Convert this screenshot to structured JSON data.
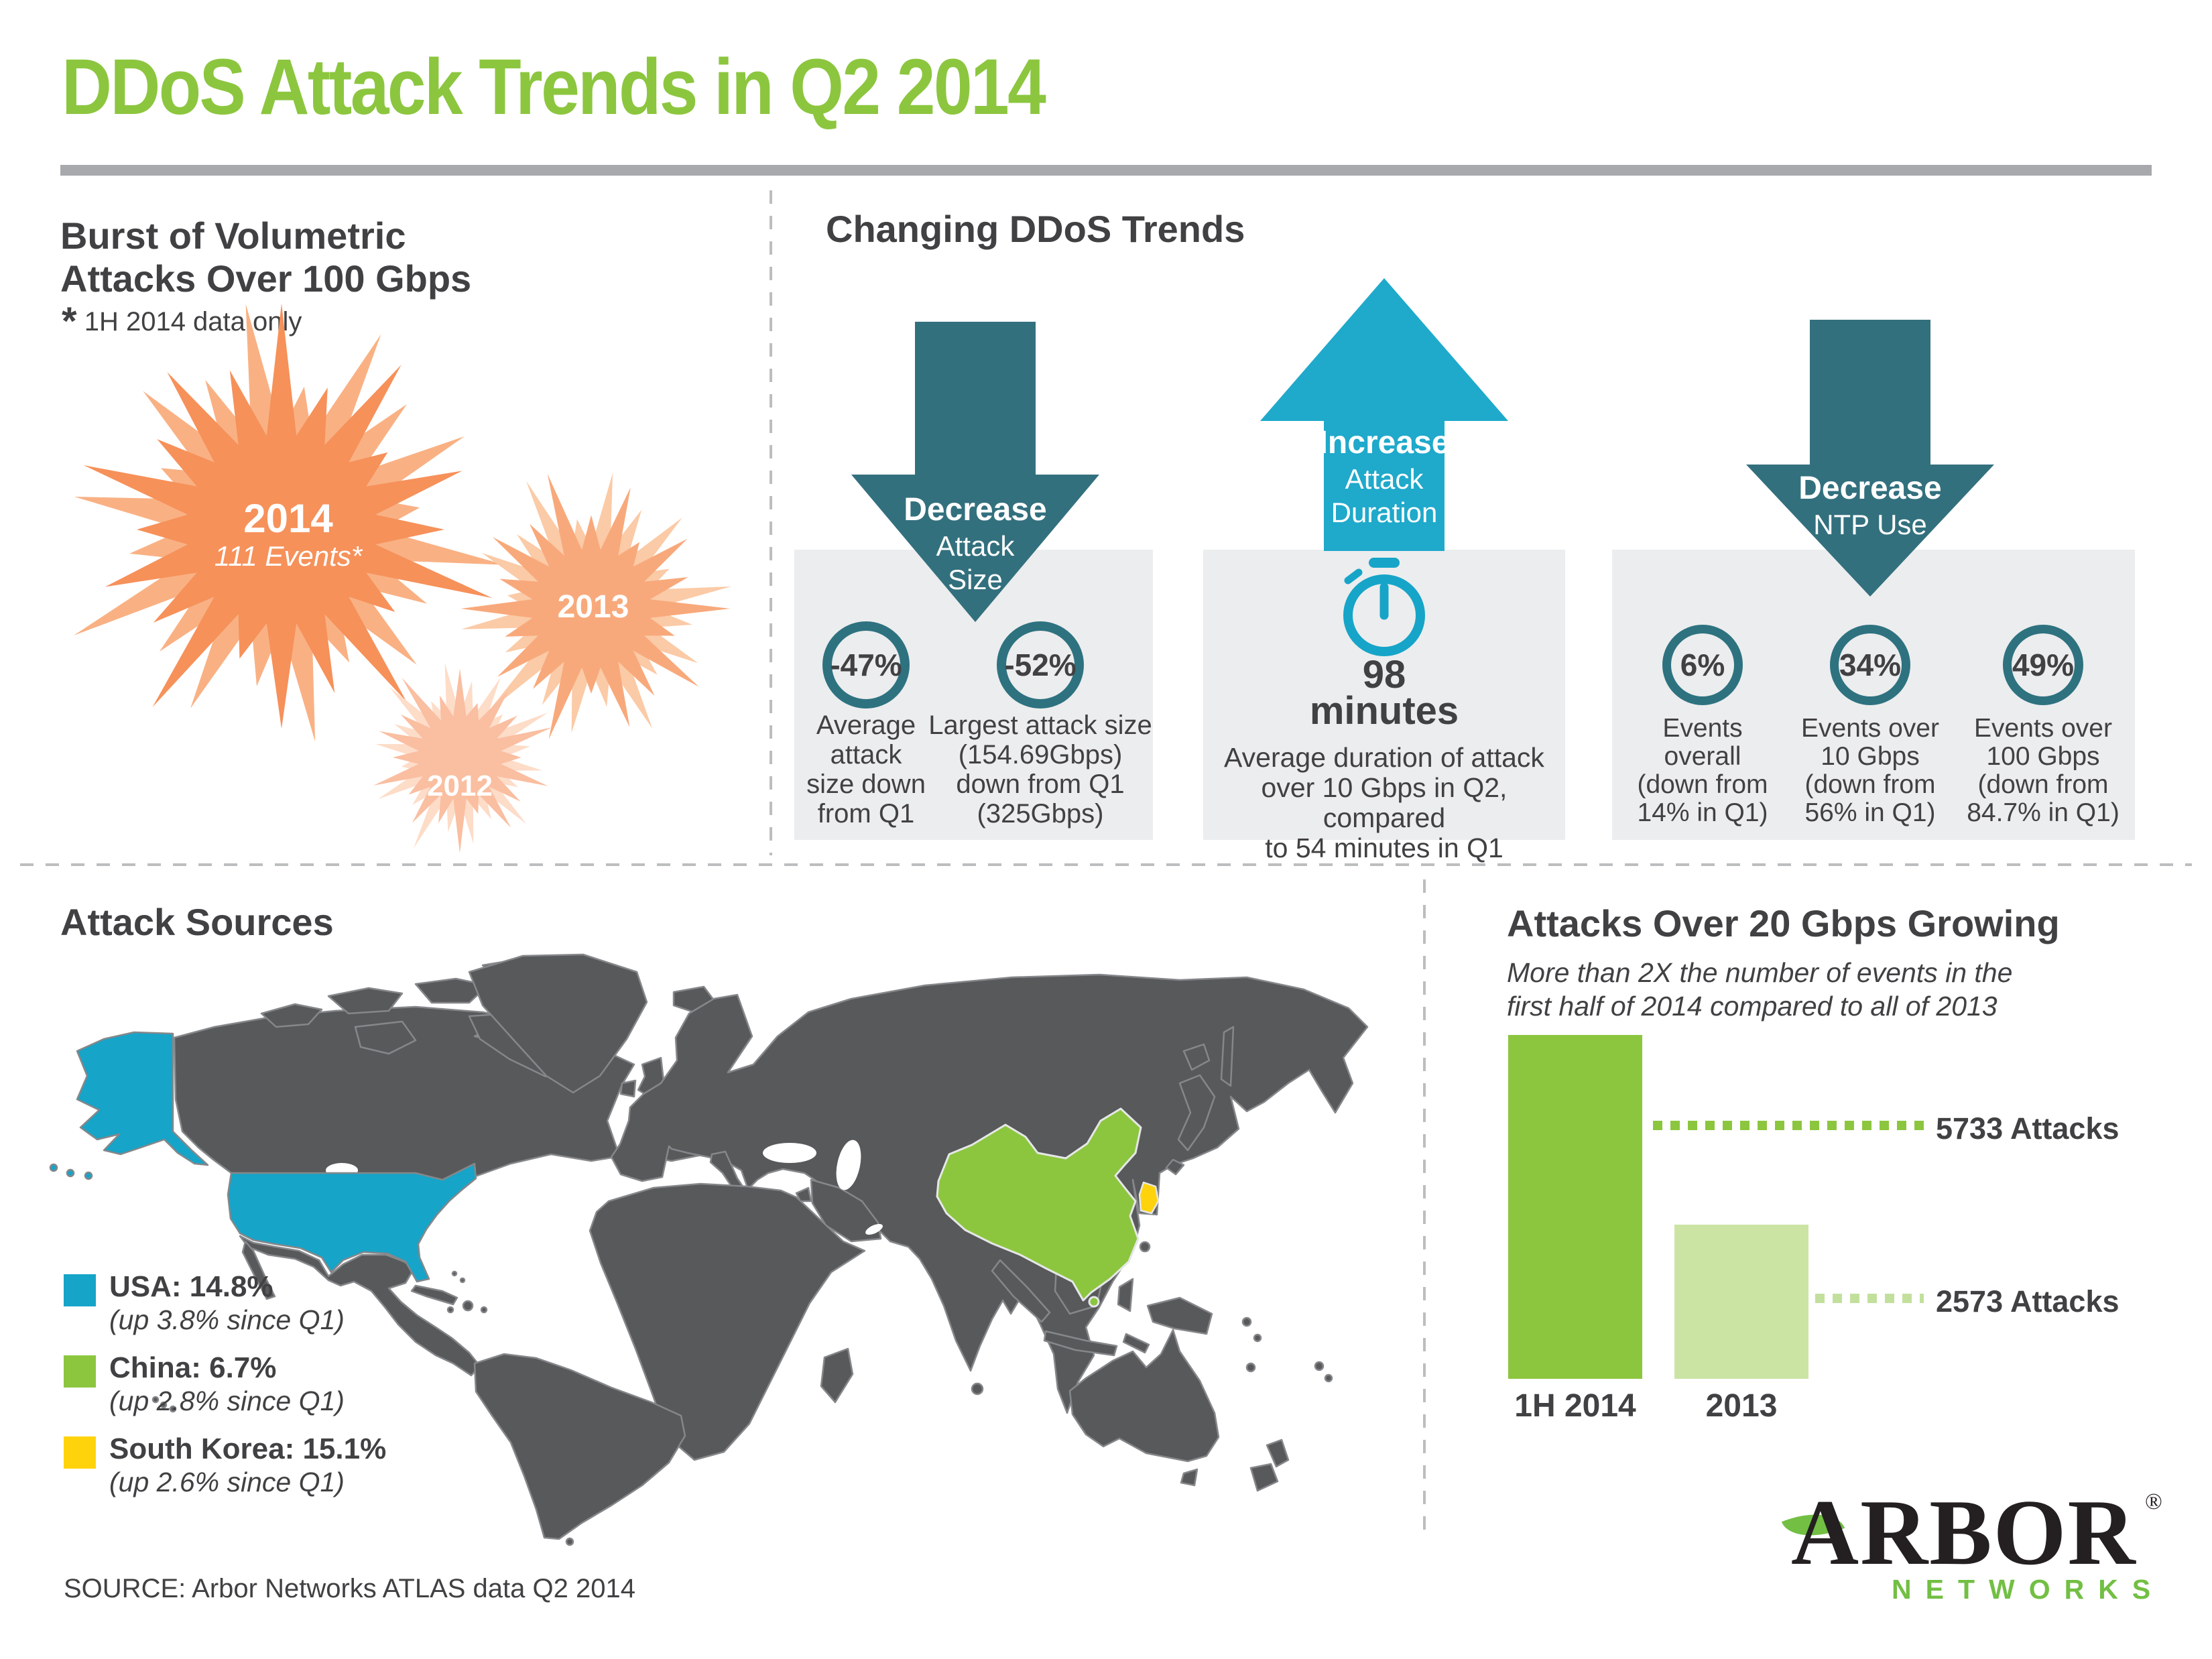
{
  "header": {
    "title": "DDoS Attack Trends in Q2 2014"
  },
  "burst": {
    "heading_line1": "Burst of Volumetric",
    "heading_line2": "Attacks Over 100 Gbps",
    "note_star": "*",
    "note_text": "1H 2014 data only",
    "stars": [
      {
        "year": "2014",
        "sub": "111 Events*"
      },
      {
        "year": "2013"
      },
      {
        "year": "2012"
      }
    ]
  },
  "trends": {
    "heading": "Changing DDoS Trends",
    "attack_size": {
      "arrow_title": "Decrease",
      "arrow_line1": "Attack",
      "arrow_line2": "Size",
      "stats": [
        {
          "value": "-47%",
          "lines": [
            "Average",
            "attack",
            "size down",
            "from Q1"
          ]
        },
        {
          "value": "-52%",
          "lines": [
            "Largest attack size",
            "(154.69Gbps)",
            "down from Q1",
            "(325Gbps)"
          ]
        }
      ]
    },
    "duration": {
      "arrow_title": "Increase",
      "arrow_line1": "Attack",
      "arrow_line2": "Duration",
      "big_value": "98",
      "big_unit": "minutes",
      "caption": [
        "Average duration of attack",
        "over 10 Gbps in Q2, compared",
        "to 54 minutes in Q1"
      ]
    },
    "ntp": {
      "arrow_title": "Decrease",
      "arrow_line1": "NTP Use",
      "stats": [
        {
          "value": "6%",
          "lines": [
            "Events",
            "overall",
            "(down from",
            "14% in Q1)"
          ]
        },
        {
          "value": "34%",
          "lines": [
            "Events over",
            "10 Gbps",
            "(down from",
            "56% in Q1)"
          ]
        },
        {
          "value": "49%",
          "lines": [
            "Events over",
            "100 Gbps",
            "(down from",
            "84.7% in Q1)"
          ]
        }
      ]
    }
  },
  "sources": {
    "heading": "Attack Sources",
    "legend": [
      {
        "label": "USA: 14.8%",
        "sub": "(up 3.8% since Q1)",
        "color": "#16A4C8"
      },
      {
        "label": "China: 6.7%",
        "sub": "(up 2.8% since Q1)",
        "color": "#8CC63F"
      },
      {
        "label": "South Korea: 15.1%",
        "sub": "(up 2.6% since Q1)",
        "color": "#FFD30B"
      }
    ],
    "source_note": "SOURCE: Arbor Networks ATLAS data Q2 2014"
  },
  "growth": {
    "heading": "Attacks Over 20 Gbps Growing",
    "subtitle_line1": "More than 2X the number of events in the",
    "subtitle_line2": "first half of 2014 compared to all of 2013",
    "bars": [
      {
        "label": "1H 2014",
        "annotation": "5733 Attacks"
      },
      {
        "label": "2013",
        "annotation": "2573 Attacks"
      }
    ]
  },
  "logo": {
    "word": "ARBOR",
    "reg": "®",
    "sub": "NETWORKS"
  },
  "colors": {
    "brand_green": "#8CC63F",
    "teal": "#33707E",
    "cyan": "#1FA9CB",
    "map_usa_blue": "#16A4C8",
    "map_china_green": "#8CC63F",
    "map_korea_yellow": "#FFD30B",
    "orange_2014": "#F6915A",
    "orange_2013": "#F8A97B",
    "orange_2012": "#FABEA0",
    "bar_2014": "#8CC63F",
    "bar_2013": "#CBE4A4"
  },
  "chart_data": [
    {
      "type": "bar",
      "title": "Attacks Over 20 Gbps Growing",
      "subtitle": "More than 2X the number of events in the first half of 2014 compared to all of 2013",
      "categories": [
        "1H 2014",
        "2013"
      ],
      "values": [
        5733,
        2573
      ],
      "annotations": [
        "5733 Attacks",
        "2573 Attacks"
      ],
      "bar_colors": [
        "#8CC63F",
        "#CBE4A4"
      ],
      "ylim": [
        0,
        5733
      ],
      "grid": false,
      "legend_position": "none"
    },
    {
      "type": "other",
      "subtype": "starburst-year-comparison",
      "title": "Burst of Volumetric Attacks Over 100 Gbps",
      "note": "1H 2014 data only",
      "categories": [
        "2014",
        "2013",
        "2012"
      ],
      "values": [
        111,
        null,
        null
      ],
      "labels": [
        "111 Events*",
        "",
        ""
      ]
    },
    {
      "type": "map",
      "title": "Attack Sources",
      "series": [
        {
          "name": "USA",
          "value_pct": 14.8,
          "change": "up 3.8% since Q1",
          "color": "#16A4C8"
        },
        {
          "name": "China",
          "value_pct": 6.7,
          "change": "up 2.8% since Q1",
          "color": "#8CC63F"
        },
        {
          "name": "South Korea",
          "value_pct": 15.1,
          "change": "up 2.6% since Q1",
          "color": "#FFD30B"
        }
      ]
    },
    {
      "type": "other",
      "subtype": "kpi-trends",
      "title": "Changing DDoS Trends",
      "stats": [
        {
          "group": "Decrease Attack Size",
          "value": "-47%",
          "label": "Average attack size down from Q1"
        },
        {
          "group": "Decrease Attack Size",
          "value": "-52%",
          "label": "Largest attack size (154.69Gbps) down from Q1 (325Gbps)"
        },
        {
          "group": "Increase Attack Duration",
          "value": "98 minutes",
          "label": "Average duration of attack over 10 Gbps in Q2, compared to 54 minutes in Q1"
        },
        {
          "group": "Decrease NTP Use",
          "value": "6%",
          "label": "Events overall (down from 14% in Q1)"
        },
        {
          "group": "Decrease NTP Use",
          "value": "34%",
          "label": "Events over 10 Gbps (down from 56% in Q1)"
        },
        {
          "group": "Decrease NTP Use",
          "value": "49%",
          "label": "Events over 100 Gbps (down from 84.7% in Q1)"
        }
      ]
    }
  ]
}
